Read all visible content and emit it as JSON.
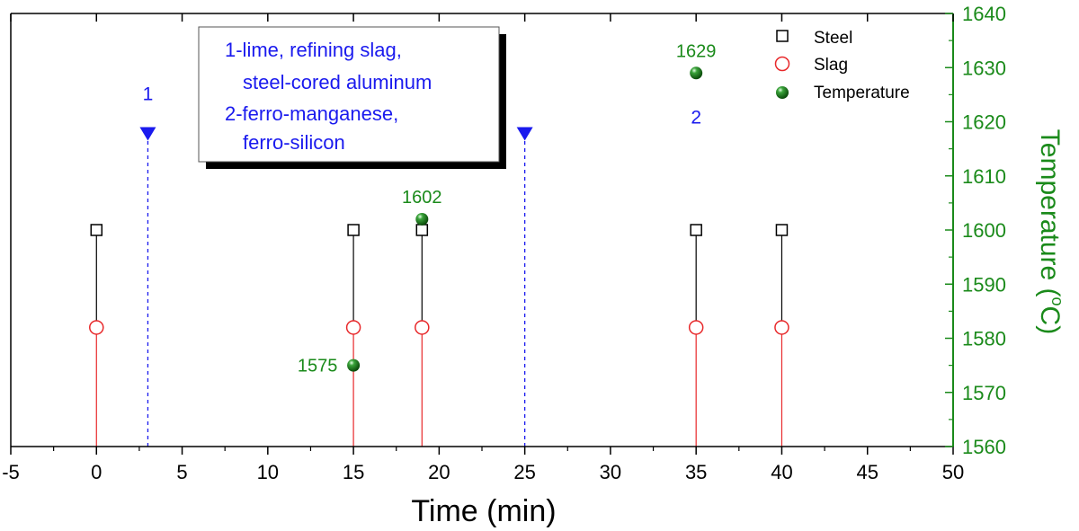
{
  "chart_data": {
    "type": "scatter",
    "xlabel": "Time (min)",
    "ylabel": "Temperature (",
    "ylabel_unit_sup": "o",
    "ylabel_unit": "C)",
    "xlim": [
      -5,
      50
    ],
    "ylim": [
      1560,
      1640
    ],
    "xticks": [
      "-5",
      "0",
      "5",
      "10",
      "15",
      "20",
      "25",
      "30",
      "35",
      "40",
      "45",
      "50"
    ],
    "yticks": [
      "1560",
      "1570",
      "1580",
      "1590",
      "1600",
      "1610",
      "1620",
      "1630",
      "1640"
    ],
    "grid": false,
    "legend_position": "top-right",
    "colors": {
      "steel": "#000000",
      "slag": "#e8282a",
      "temperature": "#1a8a1a",
      "additions": "#1a1aee",
      "axis_right": "#1a8a1a"
    },
    "series": [
      {
        "name": "Steel",
        "marker": "open-square",
        "x": [
          0,
          15,
          19,
          35,
          40
        ],
        "y": [
          1600,
          1600,
          1600,
          1600,
          1600
        ]
      },
      {
        "name": "Slag",
        "marker": "open-circle",
        "x": [
          0,
          15,
          19,
          35,
          40
        ],
        "y": [
          1582,
          1582,
          1582,
          1582,
          1582
        ]
      },
      {
        "name": "Temperature",
        "marker": "filled-sphere",
        "x": [
          15,
          19,
          35
        ],
        "y": [
          1575,
          1602,
          1629
        ]
      }
    ],
    "data_labels": [
      {
        "text": "1575",
        "x": 15,
        "y": 1575
      },
      {
        "text": "1602",
        "x": 19,
        "y": 1602
      },
      {
        "text": "1629",
        "x": 35,
        "y": 1629
      }
    ],
    "additions": [
      {
        "label": "1",
        "x": 3
      },
      {
        "label": "2",
        "x": 25
      }
    ],
    "addition_level": 1618,
    "annotation_lines": [
      "1-lime, refining slag,",
      "steel-cored aluminum",
      "2-ferro-manganese,",
      "ferro-silicon"
    ]
  }
}
